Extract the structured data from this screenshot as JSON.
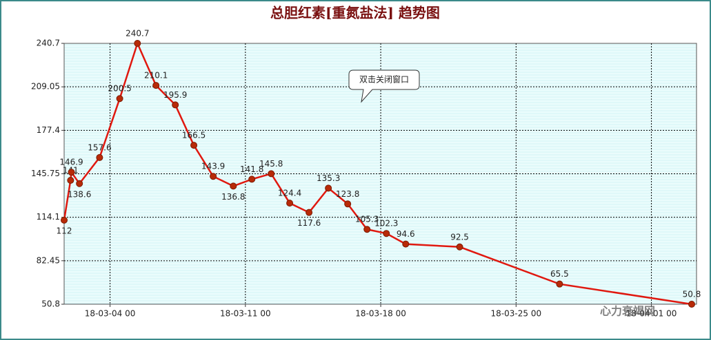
{
  "chart_data": {
    "type": "line",
    "title": "总胆红素[重氮盐法] 趋势图",
    "annotation": "双击关闭窗口",
    "watermark": "心力衰竭网",
    "x": [
      "18-03-01 15",
      "18-03-01 23",
      "18-03-02 00",
      "18-03-02 10",
      "18-03-03 11",
      "18-03-04 12",
      "18-03-05 10",
      "18-03-06 09",
      "18-03-07 09",
      "18-03-08 08",
      "18-03-09 08",
      "18-03-10 09",
      "18-03-11 08",
      "18-03-12 08",
      "18-03-13 07",
      "18-03-14 07",
      "18-03-15 07",
      "18-03-16 07",
      "18-03-17 07",
      "18-03-18 07",
      "18-03-19 07",
      "18-03-22 02",
      "18-03-27 06",
      "18-04-03 02"
    ],
    "series": [
      {
        "name": "总胆红素[重氮盐法]",
        "color": "#e0180f",
        "marker_color": "#b82a08",
        "values": [
          112,
          141,
          146.9,
          138.6,
          157.6,
          200.5,
          240.7,
          210.1,
          195.9,
          166.5,
          143.9,
          136.8,
          141.8,
          145.8,
          124.4,
          117.6,
          135.3,
          123.8,
          105.3,
          102.3,
          94.6,
          92.5,
          65.5,
          50.8
        ]
      }
    ],
    "xlim": [
      "18-03-01 15",
      "18-04-03 08"
    ],
    "xticks": [
      "18-03-04 00",
      "18-03-11 00",
      "18-03-18 00",
      "18-03-25 00",
      "18-04-01 00"
    ],
    "ylim": [
      50.8,
      240.7
    ],
    "yticks": [
      50.8,
      82.45,
      114.1,
      145.75,
      177.4,
      209.05,
      240.7
    ],
    "grid": true
  }
}
